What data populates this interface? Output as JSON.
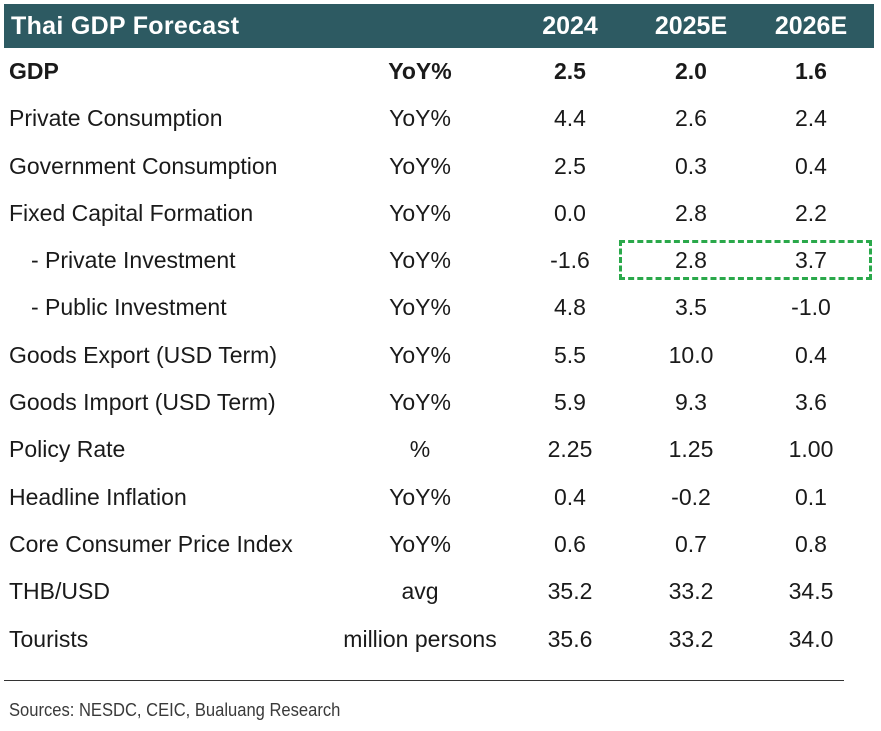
{
  "table": {
    "title": "Thai GDP Forecast",
    "years": [
      "2024",
      "2025E",
      "2026E"
    ],
    "rows": [
      {
        "label": "GDP",
        "unit": "YoY%",
        "v2024": "2.5",
        "v2025": "2.0",
        "v2026": "1.6"
      },
      {
        "label": "Private Consumption",
        "unit": "YoY%",
        "v2024": "4.4",
        "v2025": "2.6",
        "v2026": "2.4"
      },
      {
        "label": "Government Consumption",
        "unit": "YoY%",
        "v2024": "2.5",
        "v2025": "0.3",
        "v2026": "0.4"
      },
      {
        "label": "Fixed Capital Formation",
        "unit": "YoY%",
        "v2024": "0.0",
        "v2025": "2.8",
        "v2026": "2.2"
      },
      {
        "label": "- Private Investment",
        "unit": "YoY%",
        "v2024": "-1.6",
        "v2025": "2.8",
        "v2026": "3.7"
      },
      {
        "label": "- Public Investment",
        "unit": "YoY%",
        "v2024": "4.8",
        "v2025": "3.5",
        "v2026": "-1.0"
      },
      {
        "label": "Goods Export (USD Term)",
        "unit": "YoY%",
        "v2024": "5.5",
        "v2025": "10.0",
        "v2026": "0.4"
      },
      {
        "label": "Goods Import (USD Term)",
        "unit": "YoY%",
        "v2024": "5.9",
        "v2025": "9.3",
        "v2026": "3.6"
      },
      {
        "label": "Policy Rate",
        "unit": "%",
        "v2024": "2.25",
        "v2025": "1.25",
        "v2026": "1.00"
      },
      {
        "label": "Headline Inflation",
        "unit": "YoY%",
        "v2024": "0.4",
        "v2025": "-0.2",
        "v2026": "0.1"
      },
      {
        "label": "Core Consumer Price Index",
        "unit": "YoY%",
        "v2024": "0.6",
        "v2025": "0.7",
        "v2026": "0.8"
      },
      {
        "label": "THB/USD",
        "unit": "avg",
        "v2024": "35.2",
        "v2025": "33.2",
        "v2026": "34.5"
      },
      {
        "label": "Tourists",
        "unit": "million persons",
        "v2024": "35.6",
        "v2025": "33.2",
        "v2026": "34.0"
      }
    ]
  },
  "source": "Sources: NESDC, CEIC, Bualuang Research",
  "colors": {
    "header_bg": "#2d5a62",
    "highlight": "#2aa84a"
  }
}
